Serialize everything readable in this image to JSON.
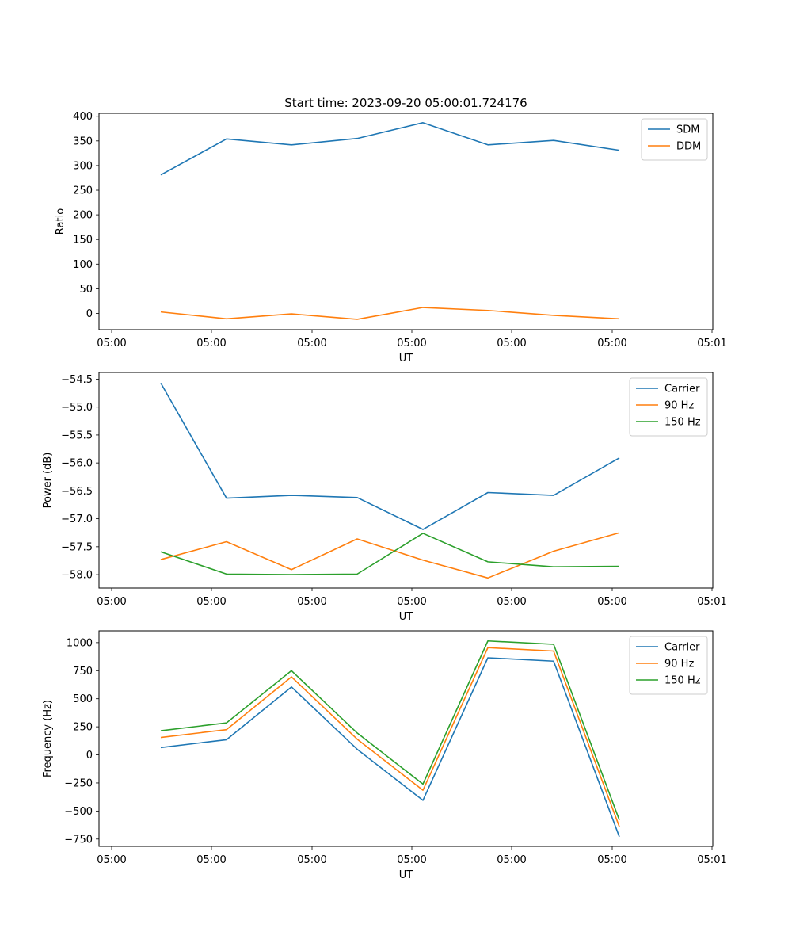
{
  "chart_data": [
    {
      "type": "line",
      "title": "Start time: 2023-09-20 05:00:01.724176",
      "xlabel": "UT",
      "ylabel": "Ratio",
      "x_tick_labels": [
        "05:00",
        "05:00",
        "05:00",
        "05:00",
        "05:00",
        "05:00",
        "05:01"
      ],
      "y_ticks": [
        0,
        50,
        100,
        150,
        200,
        250,
        300,
        350,
        400
      ],
      "ylim": [
        -33,
        406
      ],
      "series": [
        {
          "name": "SDM",
          "color": "#1f77b4",
          "values": [
            281,
            354,
            342,
            355,
            387,
            342,
            351,
            331
          ]
        },
        {
          "name": "DDM",
          "color": "#ff7f0e",
          "values": [
            3,
            -11,
            -1,
            -12,
            12,
            6,
            -4,
            -11
          ]
        }
      ]
    },
    {
      "type": "line",
      "title": "",
      "xlabel": "UT",
      "ylabel": "Power (dB)",
      "x_tick_labels": [
        "05:00",
        "05:00",
        "05:00",
        "05:00",
        "05:00",
        "05:00",
        "05:01"
      ],
      "y_ticks": [
        -58.0,
        -57.5,
        -57.0,
        -56.5,
        -56.0,
        -55.5,
        -55.0,
        -54.5
      ],
      "y_tick_labels": [
        "−58.0",
        "−57.5",
        "−57.0",
        "−56.5",
        "−56.0",
        "−55.5",
        "−55.0",
        "−54.5"
      ],
      "ylim": [
        -58.24,
        -54.38
      ],
      "series": [
        {
          "name": "Carrier",
          "color": "#1f77b4",
          "values": [
            -54.57,
            -56.63,
            -56.58,
            -56.62,
            -57.19,
            -56.53,
            -56.58,
            -55.91
          ]
        },
        {
          "name": "90 Hz",
          "color": "#ff7f0e",
          "values": [
            -57.73,
            -57.41,
            -57.91,
            -57.36,
            -57.74,
            -58.06,
            -57.58,
            -57.25
          ]
        },
        {
          "name": "150 Hz",
          "color": "#2ca02c",
          "values": [
            -57.59,
            -57.99,
            -58.0,
            -57.99,
            -57.26,
            -57.77,
            -57.86,
            -57.85
          ]
        }
      ]
    },
    {
      "type": "line",
      "title": "",
      "xlabel": "UT",
      "ylabel": "Frequency (Hz)",
      "x_tick_labels": [
        "05:00",
        "05:00",
        "05:00",
        "05:00",
        "05:00",
        "05:00",
        "05:01"
      ],
      "y_ticks": [
        -750,
        -500,
        -250,
        0,
        250,
        500,
        750,
        1000
      ],
      "y_tick_labels": [
        "−750",
        "−500",
        "−250",
        "0",
        "250",
        "500",
        "750",
        "1000"
      ],
      "ylim": [
        -815,
        1105
      ],
      "series": [
        {
          "name": "Carrier",
          "color": "#1f77b4",
          "values": [
            65,
            135,
            605,
            50,
            -405,
            865,
            835,
            -730
          ]
        },
        {
          "name": "90 Hz",
          "color": "#ff7f0e",
          "values": [
            155,
            225,
            695,
            140,
            -315,
            955,
            925,
            -640
          ]
        },
        {
          "name": "150 Hz",
          "color": "#2ca02c",
          "values": [
            215,
            285,
            750,
            195,
            -260,
            1015,
            985,
            -580
          ]
        }
      ]
    }
  ]
}
